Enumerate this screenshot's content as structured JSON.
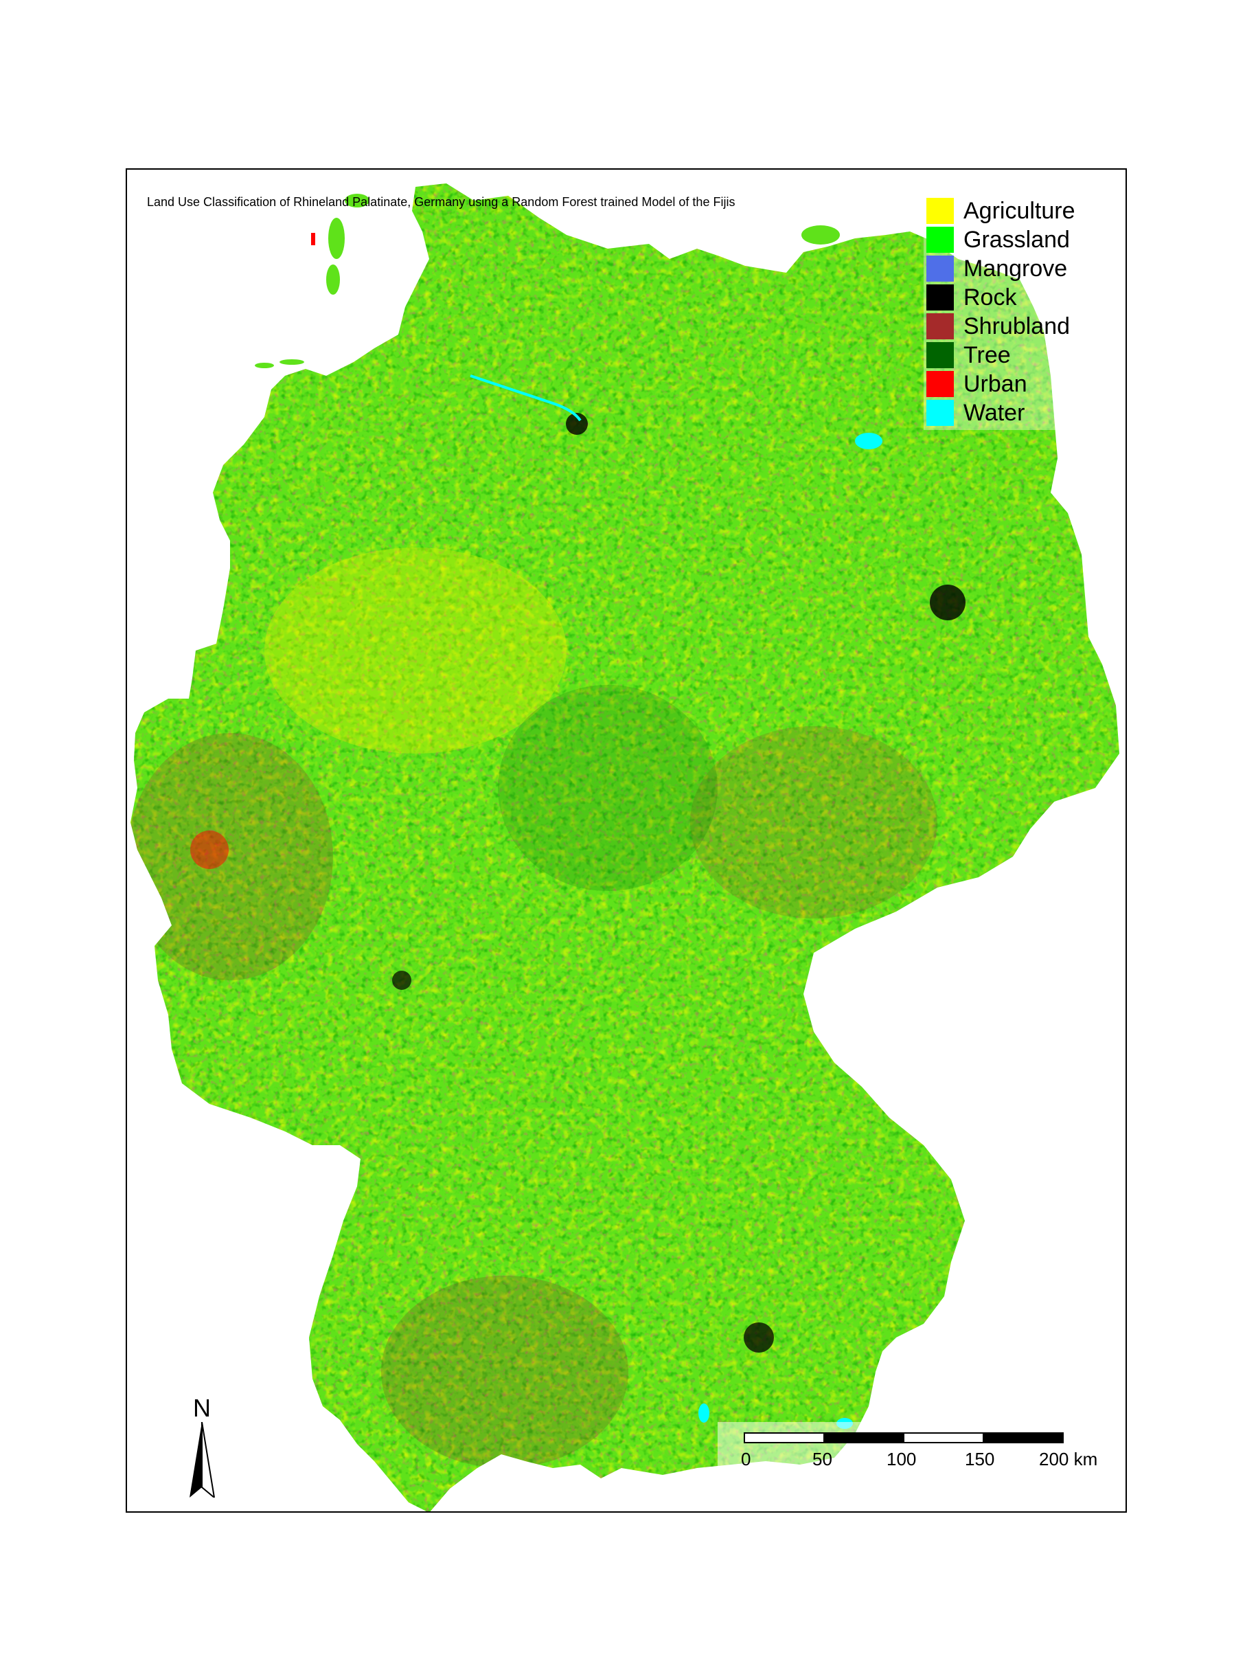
{
  "map": {
    "title": "Land Use Classification of Rhineland Palatinate, Germany using a Random Forest trained Model of the Fijis",
    "legend": [
      {
        "label": "Agriculture",
        "color": "#ffff00"
      },
      {
        "label": "Grassland",
        "color": "#00ff00"
      },
      {
        "label": "Mangrove",
        "color": "#4f6fe8"
      },
      {
        "label": "Rock",
        "color": "#000000"
      },
      {
        "label": "Shrubland",
        "color": "#a52a2a"
      },
      {
        "label": "Tree",
        "color": "#006400"
      },
      {
        "label": "Urban",
        "color": "#ff0000"
      },
      {
        "label": "Water",
        "color": "#00ffff"
      }
    ],
    "north_label": "N",
    "scale_bar": {
      "ticks": [
        "0",
        "50",
        "100",
        "150",
        "200 km"
      ]
    }
  }
}
